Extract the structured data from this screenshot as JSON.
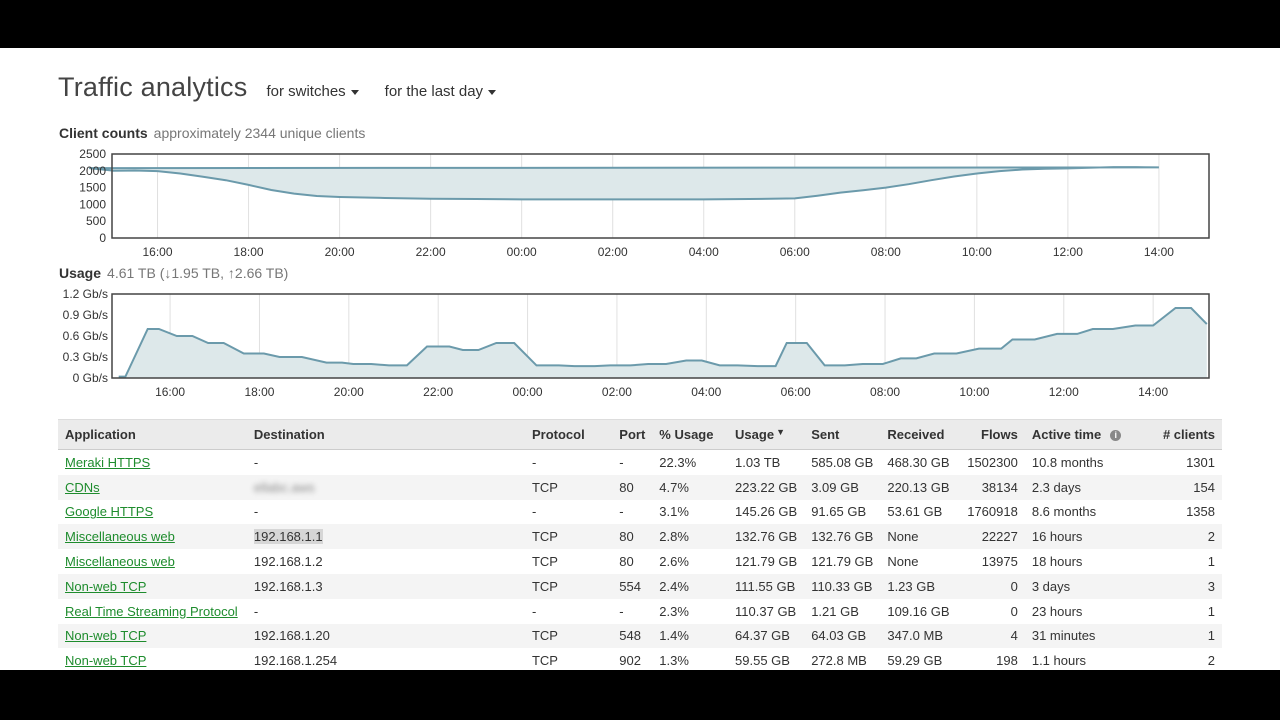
{
  "page": {
    "title": "Traffic analytics",
    "device_filter": "for switches",
    "time_filter": "for the last day"
  },
  "client_counts": {
    "label": "Client counts",
    "summary": "approximately 2344 unique clients"
  },
  "usage": {
    "label": "Usage",
    "summary": "4.61 TB (↓1.95 TB, ↑2.66 TB)"
  },
  "colors": {
    "line": "#6b9aab",
    "area": "#dde8ea",
    "link": "#1e8c2d"
  },
  "chart_data": [
    {
      "type": "area",
      "title": "Client counts",
      "x_ticks": [
        "16:00",
        "18:00",
        "20:00",
        "22:00",
        "00:00",
        "02:00",
        "04:00",
        "06:00",
        "08:00",
        "10:00",
        "12:00",
        "14:00"
      ],
      "y_ticks": [
        "2500",
        "2000",
        "1500",
        "1000",
        "500",
        "0"
      ],
      "ylim": [
        0,
        2500
      ],
      "grid": true,
      "x": [
        "15:00",
        "15:30",
        "16:00",
        "16:30",
        "17:00",
        "17:30",
        "18:00",
        "18:30",
        "19:00",
        "19:30",
        "20:00",
        "21:00",
        "22:00",
        "23:00",
        "00:00",
        "01:00",
        "02:00",
        "03:00",
        "04:00",
        "05:00",
        "06:00",
        "06:30",
        "07:00",
        "07:30",
        "08:00",
        "08:30",
        "09:00",
        "09:30",
        "10:00",
        "10:30",
        "11:00",
        "11:30",
        "12:00",
        "12:30",
        "13:00",
        "13:30",
        "14:00",
        "14:30",
        "15:00"
      ],
      "values": [
        2000,
        2010,
        1990,
        1920,
        1820,
        1720,
        1580,
        1430,
        1320,
        1250,
        1220,
        1190,
        1170,
        1160,
        1150,
        1150,
        1150,
        1150,
        1150,
        1160,
        1180,
        1260,
        1350,
        1420,
        1500,
        1600,
        1720,
        1830,
        1920,
        1990,
        2040,
        2060,
        2070,
        2090,
        2110,
        2110,
        2100,
        2080,
        2010
      ]
    },
    {
      "type": "area",
      "title": "Usage",
      "x_ticks": [
        "16:00",
        "18:00",
        "20:00",
        "22:00",
        "00:00",
        "02:00",
        "04:00",
        "06:00",
        "08:00",
        "10:00",
        "12:00",
        "14:00"
      ],
      "y_ticks": [
        "1.2 Gb/s",
        "0.9 Gb/s",
        "0.6 Gb/s",
        "0.3 Gb/s",
        "0 Gb/s"
      ],
      "ylim": [
        0,
        1.2
      ],
      "grid": true,
      "x": [
        14.85,
        15.0,
        15.5,
        15.75,
        16.15,
        16.5,
        16.85,
        17.2,
        17.65,
        18.1,
        18.45,
        18.95,
        19.5,
        19.85,
        20.1,
        20.5,
        20.9,
        21.3,
        21.75,
        22.25,
        22.55,
        22.9,
        23.3,
        23.7,
        24.2,
        24.7,
        25.05,
        25.5,
        25.85,
        26.3,
        26.7,
        27.1,
        27.55,
        27.9,
        28.3,
        28.7,
        29.15,
        29.55,
        29.8,
        30.25,
        30.65,
        31.1,
        31.5,
        31.95,
        32.35,
        32.7,
        33.1,
        33.6,
        34.1,
        34.6,
        34.85,
        35.35,
        35.85,
        36.3,
        36.65,
        37.1,
        37.6,
        38.0,
        38.5,
        38.85,
        39.2
      ],
      "values": [
        0.02,
        0.02,
        0.7,
        0.7,
        0.6,
        0.6,
        0.5,
        0.5,
        0.35,
        0.35,
        0.3,
        0.3,
        0.22,
        0.22,
        0.2,
        0.2,
        0.18,
        0.18,
        0.45,
        0.45,
        0.4,
        0.4,
        0.5,
        0.5,
        0.18,
        0.18,
        0.17,
        0.17,
        0.18,
        0.18,
        0.2,
        0.2,
        0.25,
        0.25,
        0.18,
        0.18,
        0.17,
        0.17,
        0.5,
        0.5,
        0.18,
        0.18,
        0.2,
        0.2,
        0.28,
        0.28,
        0.35,
        0.35,
        0.42,
        0.42,
        0.55,
        0.55,
        0.63,
        0.63,
        0.7,
        0.7,
        0.75,
        0.75,
        1.0,
        1.0,
        0.77
      ]
    }
  ],
  "table": {
    "columns": {
      "application": "Application",
      "destination": "Destination",
      "protocol": "Protocol",
      "port": "Port",
      "pct_usage": "% Usage",
      "usage": "Usage",
      "sent": "Sent",
      "received": "Received",
      "flows": "Flows",
      "active_time": "Active time",
      "clients": "# clients"
    },
    "rows": [
      {
        "application": "Meraki HTTPS",
        "destination": "-",
        "protocol": "-",
        "port": "-",
        "pct_usage": "22.3%",
        "usage": "1.03 TB",
        "sent": "585.08 GB",
        "received": "468.30 GB",
        "flows": "1502300",
        "active_time": "10.8 months",
        "clients": "1301"
      },
      {
        "application": "CDNs",
        "destination": "ellabc.aws",
        "protocol": "TCP",
        "port": "80",
        "pct_usage": "4.7%",
        "usage": "223.22 GB",
        "sent": "3.09 GB",
        "received": "220.13 GB",
        "flows": "38134",
        "active_time": "2.3 days",
        "clients": "154"
      },
      {
        "application": "Google HTTPS",
        "destination": "-",
        "protocol": "-",
        "port": "-",
        "pct_usage": "3.1%",
        "usage": "145.26 GB",
        "sent": "91.65 GB",
        "received": "53.61 GB",
        "flows": "1760918",
        "active_time": "8.6 months",
        "clients": "1358"
      },
      {
        "application": "Miscellaneous web",
        "destination": "192.168.1.1",
        "protocol": "TCP",
        "port": "80",
        "pct_usage": "2.8%",
        "usage": "132.76 GB",
        "sent": "132.76 GB",
        "received": "None",
        "flows": "22227",
        "active_time": "16 hours",
        "clients": "2"
      },
      {
        "application": "Miscellaneous web",
        "destination": "192.168.1.2",
        "protocol": "TCP",
        "port": "80",
        "pct_usage": "2.6%",
        "usage": "121.79 GB",
        "sent": "121.79 GB",
        "received": "None",
        "flows": "13975",
        "active_time": "18 hours",
        "clients": "1"
      },
      {
        "application": "Non-web TCP",
        "destination": "192.168.1.3",
        "protocol": "TCP",
        "port": "554",
        "pct_usage": "2.4%",
        "usage": "111.55 GB",
        "sent": "110.33 GB",
        "received": "1.23 GB",
        "flows": "0",
        "active_time": "3 days",
        "clients": "3"
      },
      {
        "application": "Real Time Streaming Protocol",
        "destination": "-",
        "protocol": "-",
        "port": "-",
        "pct_usage": "2.3%",
        "usage": "110.37 GB",
        "sent": "1.21 GB",
        "received": "109.16 GB",
        "flows": "0",
        "active_time": "23 hours",
        "clients": "1"
      },
      {
        "application": "Non-web TCP",
        "destination": "192.168.1.20",
        "protocol": "TCP",
        "port": "548",
        "pct_usage": "1.4%",
        "usage": "64.37 GB",
        "sent": "64.03 GB",
        "received": "347.0 MB",
        "flows": "4",
        "active_time": "31 minutes",
        "clients": "1"
      },
      {
        "application": "Non-web TCP",
        "destination": "192.168.1.254",
        "protocol": "TCP",
        "port": "902",
        "pct_usage": "1.3%",
        "usage": "59.55 GB",
        "sent": "272.8 MB",
        "received": "59.29 GB",
        "flows": "198",
        "active_time": "1.1 hours",
        "clients": "2"
      }
    ]
  }
}
